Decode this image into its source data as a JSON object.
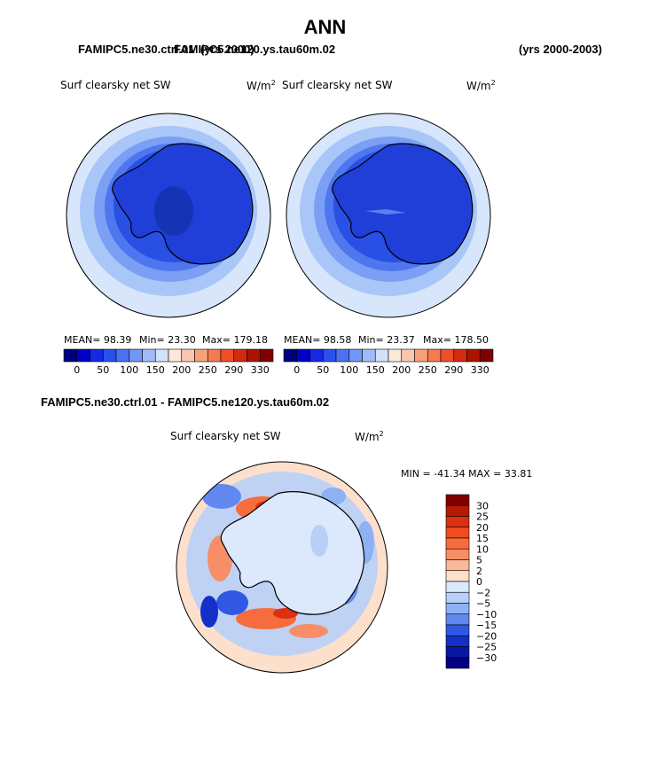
{
  "page": {
    "title": "ANN",
    "years": "(yrs 2000-2003)",
    "case_top_a": "FAMIPC5.ne30.ctrl.01",
    "case_top_b_prefix": "FAMIPC5.ne120.ys.tau60m.02",
    "case_top_b_yrs": "(yrs 2000)",
    "diff_title": "FAMIPC5.ne30.ctrl.01 - FAMIPC5.ne120.ys.tau60m.02"
  },
  "panels": [
    {
      "var": "Surf clearsky net SW",
      "unit": "W/m",
      "unit_sup": "2",
      "mean": "MEAN=  98.39",
      "min": "Min=  23.30",
      "max": "Max= 179.18"
    },
    {
      "var": "Surf clearsky net SW",
      "unit": "W/m",
      "unit_sup": "2",
      "mean": "MEAN=  98.58",
      "min": "Min=  23.37",
      "max": "Max= 178.50"
    }
  ],
  "diff_panel": {
    "var": "Surf clearsky net SW",
    "unit": "W/m",
    "unit_sup": "2",
    "minmax": "MIN = -41.34  MAX =  33.81"
  },
  "colorbar_top": {
    "labels": [
      "0",
      "50",
      "100",
      "150",
      "200",
      "250",
      "290",
      "330"
    ],
    "colors": [
      "#00007f",
      "#0000c8",
      "#1428e6",
      "#2a50ec",
      "#4a72f2",
      "#7096f6",
      "#a0bcf8",
      "#d2e2fb",
      "#fde8dc",
      "#fbc6ae",
      "#f8a07c",
      "#f47a50",
      "#ee5028",
      "#d42a10",
      "#ac1400",
      "#800000"
    ]
  },
  "colorbar_diff": {
    "labels": [
      "30",
      "25",
      "20",
      "15",
      "10",
      "5",
      "2",
      "0",
      "-2",
      "-5",
      "-10",
      "-15",
      "-20",
      "-25",
      "-30"
    ],
    "colors": [
      "#800000",
      "#b81800",
      "#dc3010",
      "#f04c20",
      "#f66c3c",
      "#f88e68",
      "#fbb898",
      "#fde0cc",
      "#dce8fb",
      "#b8d0f8",
      "#8eb0f4",
      "#6088ee",
      "#3058e4",
      "#1430c8",
      "#0818a4",
      "#000080"
    ]
  }
}
